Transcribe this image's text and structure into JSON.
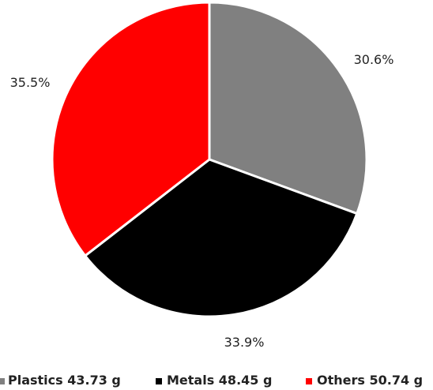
{
  "chart_data": {
    "type": "pie",
    "title": "",
    "legend_position": "bottom",
    "slices": [
      {
        "label": "Plastics",
        "legend_text": "Plastics 43.73 g",
        "value": 43.73,
        "unit": "g",
        "percent_label": "30.6%",
        "color": "#808080"
      },
      {
        "label": "Metals",
        "legend_text": "Metals 48.45 g",
        "value": 48.45,
        "unit": "g",
        "percent_label": "33.9%",
        "color": "#000000"
      },
      {
        "label": "Others",
        "legend_text": "Others 50.74 g",
        "value": 50.74,
        "unit": "g",
        "percent_label": "35.5%",
        "color": "#ff0000"
      }
    ]
  }
}
